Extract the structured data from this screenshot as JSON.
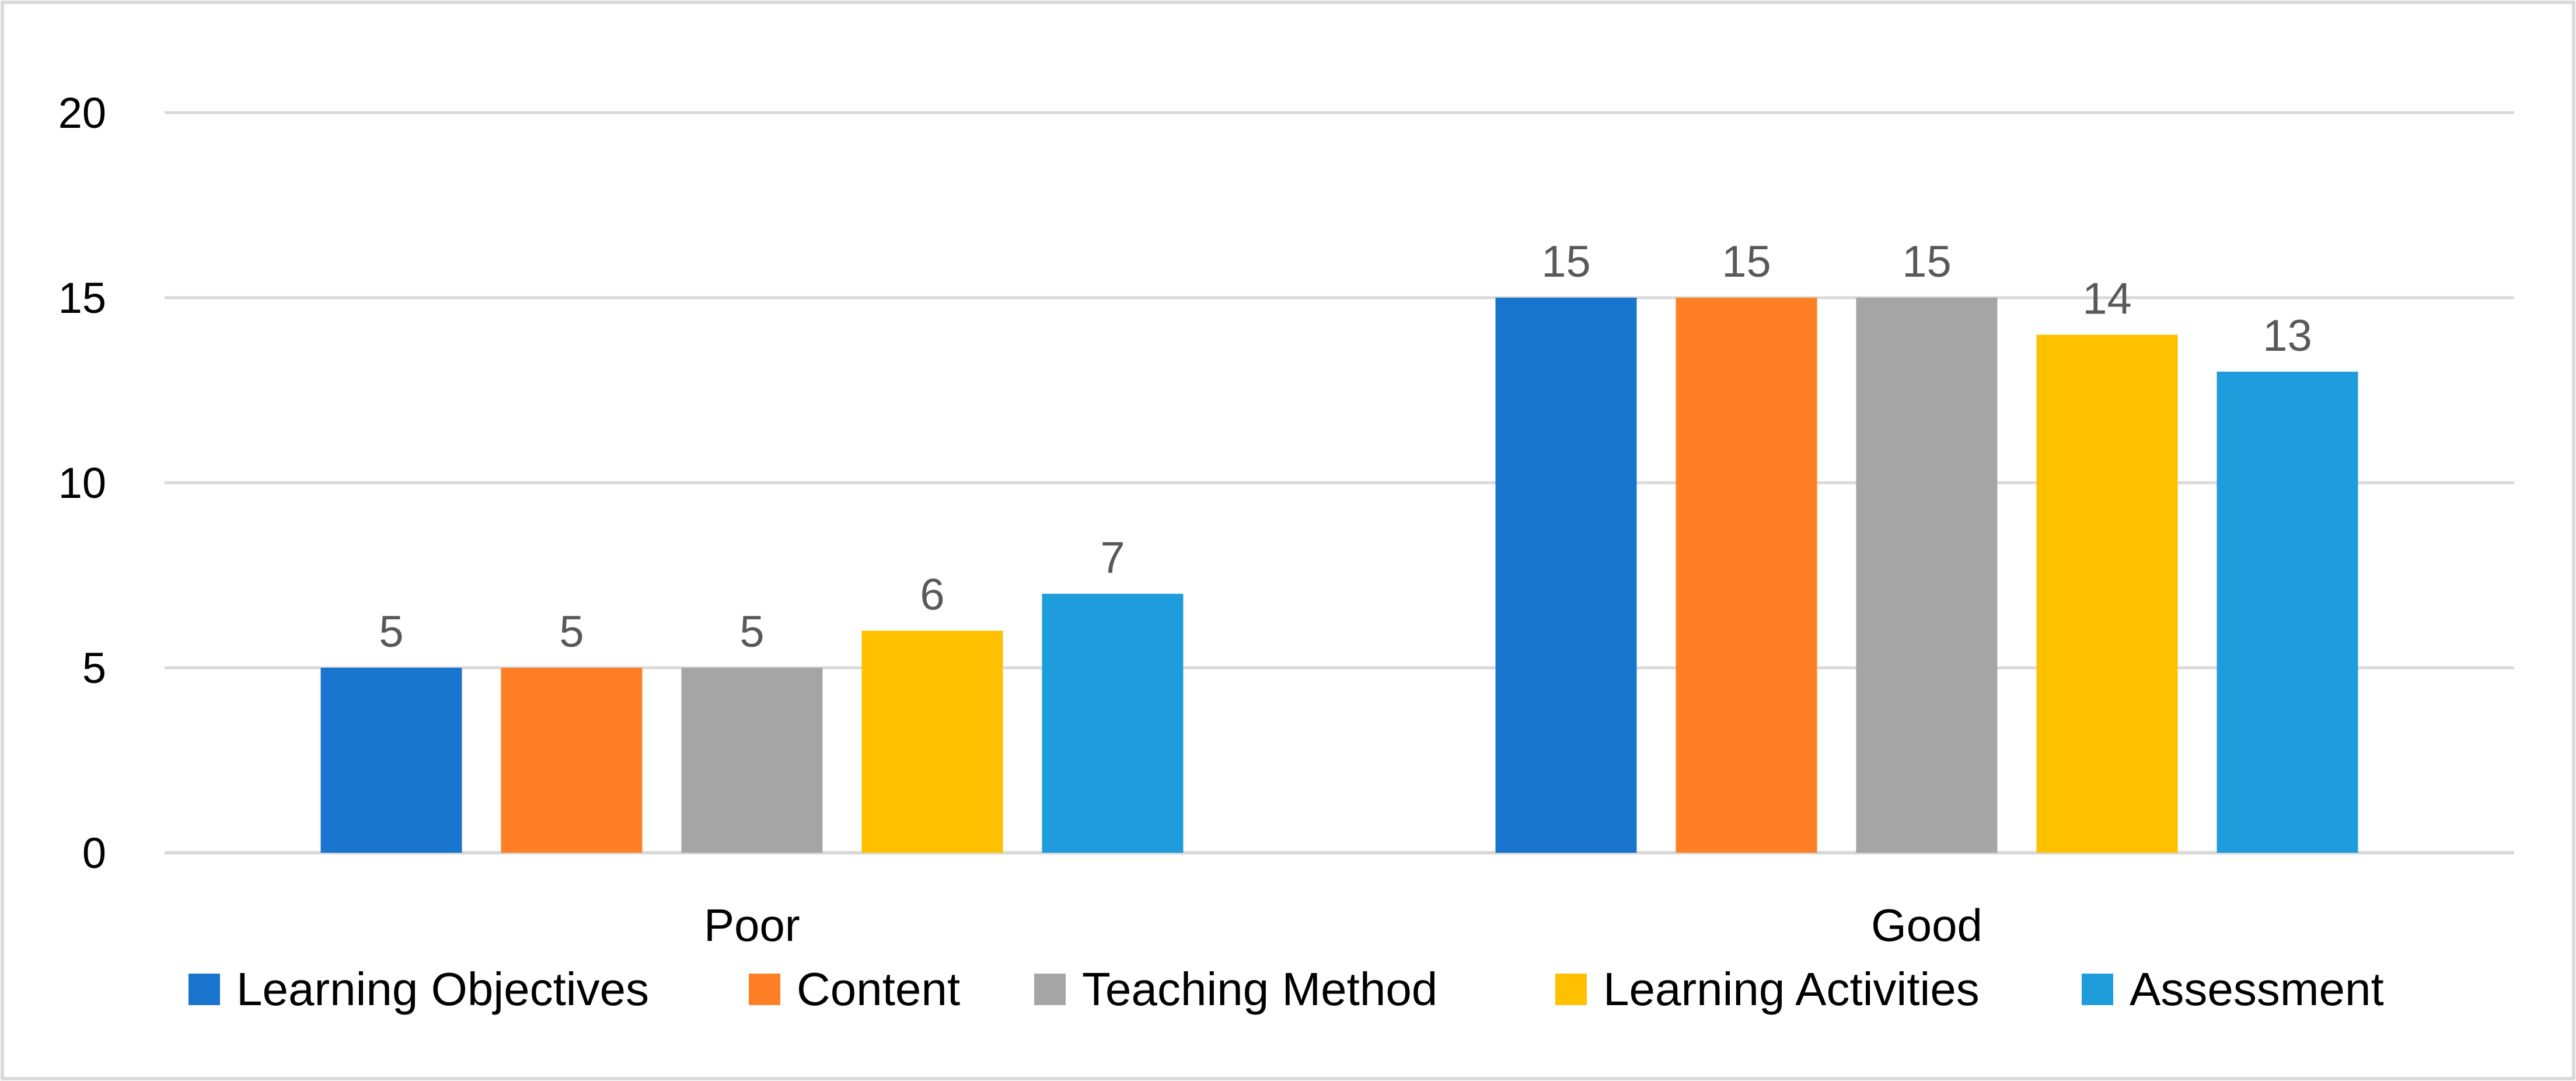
{
  "chart_data": {
    "type": "bar",
    "categories": [
      "Poor",
      "Good"
    ],
    "series": [
      {
        "name": "Learning Objectives",
        "values": [
          5,
          15
        ],
        "color": "#1874CD"
      },
      {
        "name": "Content",
        "values": [
          5,
          15
        ],
        "color": "#FF7F27"
      },
      {
        "name": "Teaching Method",
        "values": [
          5,
          15
        ],
        "color": "#A5A5A5"
      },
      {
        "name": "Learning Activities",
        "values": [
          6,
          14
        ],
        "color": "#FFC000"
      },
      {
        "name": "Assessment",
        "values": [
          7,
          13
        ],
        "color": "#1F9CDB"
      }
    ],
    "ylim": [
      0,
      20
    ],
    "yticks": [
      0,
      5,
      10,
      15,
      20
    ],
    "title": "",
    "xlabel": "",
    "ylabel": "",
    "grid": true,
    "legend_position": "bottom",
    "data_labels": true,
    "colors": {
      "gridline": "#D9D9D9",
      "axis": "#D9D9D9",
      "data_label": "#595959",
      "frame": "#D9D9D9"
    }
  }
}
